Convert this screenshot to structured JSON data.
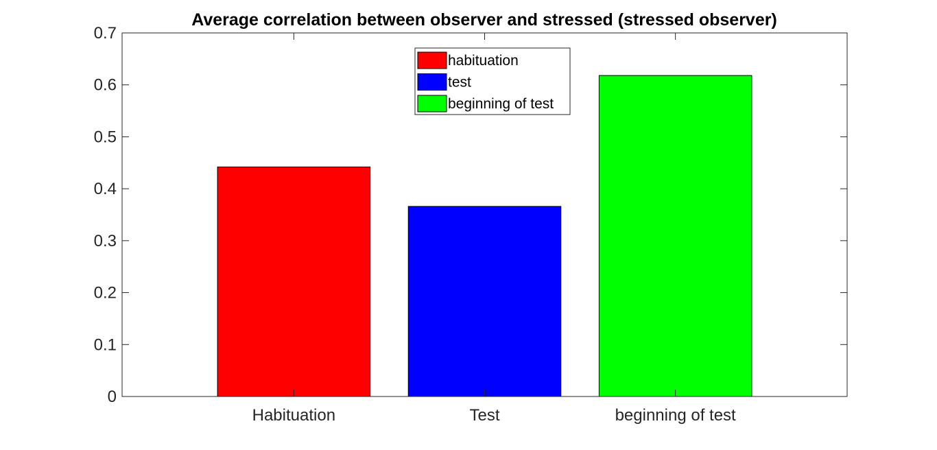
{
  "chart_data": {
    "type": "bar",
    "title": "Average correlation between observer and stressed (stressed observer)",
    "xlabel": "",
    "ylabel": "",
    "categories": [
      "Habituation",
      "Test",
      "beginning of test"
    ],
    "values": [
      0.442,
      0.366,
      0.618
    ],
    "colors": [
      "#ff0000",
      "#0000ff",
      "#00ff00"
    ],
    "ylim": [
      0,
      0.7
    ],
    "yticks": [
      0,
      0.1,
      0.2,
      0.3,
      0.4,
      0.5,
      0.6,
      0.7
    ],
    "ytick_labels": [
      "0",
      "0.1",
      "0.2",
      "0.3",
      "0.4",
      "0.5",
      "0.6",
      "0.7"
    ],
    "grid": false,
    "legend": {
      "placement": "top-center",
      "entries": [
        {
          "label": "habituation",
          "color": "#ff0000"
        },
        {
          "label": "test",
          "color": "#0000ff"
        },
        {
          "label": "beginning of test",
          "color": "#00ff00"
        }
      ]
    }
  }
}
